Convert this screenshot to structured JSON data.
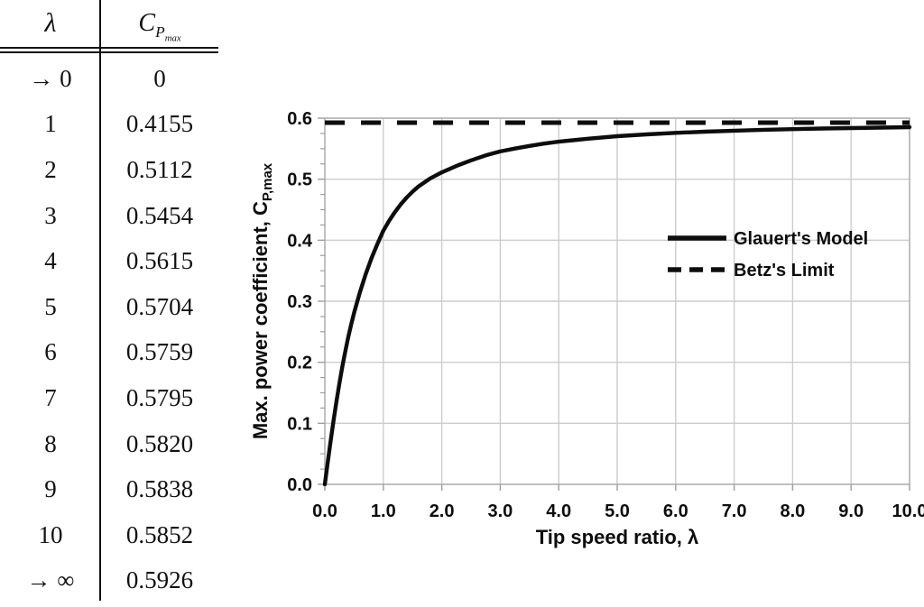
{
  "table": {
    "header": {
      "lambda": "λ",
      "cp_base": "C",
      "cp_sub": "P",
      "cp_subsub": "max"
    },
    "rows": [
      {
        "lambda": "→ 0",
        "cp": "0"
      },
      {
        "lambda": "1",
        "cp": "0.4155"
      },
      {
        "lambda": "2",
        "cp": "0.5112"
      },
      {
        "lambda": "3",
        "cp": "0.5454"
      },
      {
        "lambda": "4",
        "cp": "0.5615"
      },
      {
        "lambda": "5",
        "cp": "0.5704"
      },
      {
        "lambda": "6",
        "cp": "0.5759"
      },
      {
        "lambda": "7",
        "cp": "0.5795"
      },
      {
        "lambda": "8",
        "cp": "0.5820"
      },
      {
        "lambda": "9",
        "cp": "0.5838"
      },
      {
        "lambda": "10",
        "cp": "0.5852"
      },
      {
        "lambda": "→ ∞",
        "cp": "0.5926"
      }
    ]
  },
  "chart_data": {
    "type": "line",
    "title": "",
    "xlabel": "Tip speed ratio, λ",
    "ylabel": "Max. power coefficient, C_P,max",
    "ylabel_main": "Max. power coefficient, C",
    "ylabel_sub": "P,max",
    "xlim": [
      0,
      10
    ],
    "ylim": [
      0,
      0.6
    ],
    "x_ticks": [
      "0.0",
      "1.0",
      "2.0",
      "3.0",
      "4.0",
      "5.0",
      "6.0",
      "7.0",
      "8.0",
      "9.0",
      "10.0"
    ],
    "y_ticks": [
      "0.0",
      "0.1",
      "0.2",
      "0.3",
      "0.4",
      "0.5",
      "0.6"
    ],
    "x_tick_step": 1,
    "y_tick_step": 0.1,
    "y_minor_tick_step": 0.025,
    "grid": true,
    "legend_position": "inside-right",
    "colors": {
      "line": "#0d0d0d",
      "grid": "#cccccc",
      "border": "#b0b0b0",
      "tick": "#9e9e9e",
      "text": "#0d0d0d"
    },
    "legend": [
      {
        "label": "Glauert's Model",
        "style": "solid"
      },
      {
        "label": "Betz's Limit",
        "style": "dashed"
      }
    ],
    "series": [
      {
        "name": "Glauert's Model",
        "style": "solid",
        "x": [
          0,
          0.05,
          0.1,
          0.15,
          0.2,
          0.25,
          0.3,
          0.35,
          0.4,
          0.45,
          0.5,
          0.6,
          0.7,
          0.8,
          0.9,
          1,
          1.1,
          1.2,
          1.3,
          1.4,
          1.5,
          1.6,
          1.8,
          2,
          2.25,
          2.5,
          2.75,
          3,
          3.25,
          3.5,
          3.75,
          4,
          4.5,
          5,
          5.5,
          6,
          6.5,
          7,
          7.5,
          8,
          8.5,
          9,
          9.5,
          10
        ],
        "y": [
          0,
          0.036,
          0.072,
          0.105,
          0.137,
          0.166,
          0.193,
          0.218,
          0.241,
          0.262,
          0.281,
          0.315,
          0.345,
          0.371,
          0.394,
          0.4155,
          0.432,
          0.4465,
          0.459,
          0.47,
          0.4795,
          0.488,
          0.5012,
          0.5112,
          0.5217,
          0.5309,
          0.5389,
          0.5454,
          0.5502,
          0.5545,
          0.5583,
          0.5615,
          0.5663,
          0.5704,
          0.5734,
          0.5759,
          0.5779,
          0.5795,
          0.5809,
          0.582,
          0.583,
          0.5838,
          0.5845,
          0.5852
        ]
      },
      {
        "name": "Betz's Limit",
        "style": "dashed",
        "y_value": 0.5926
      }
    ]
  }
}
